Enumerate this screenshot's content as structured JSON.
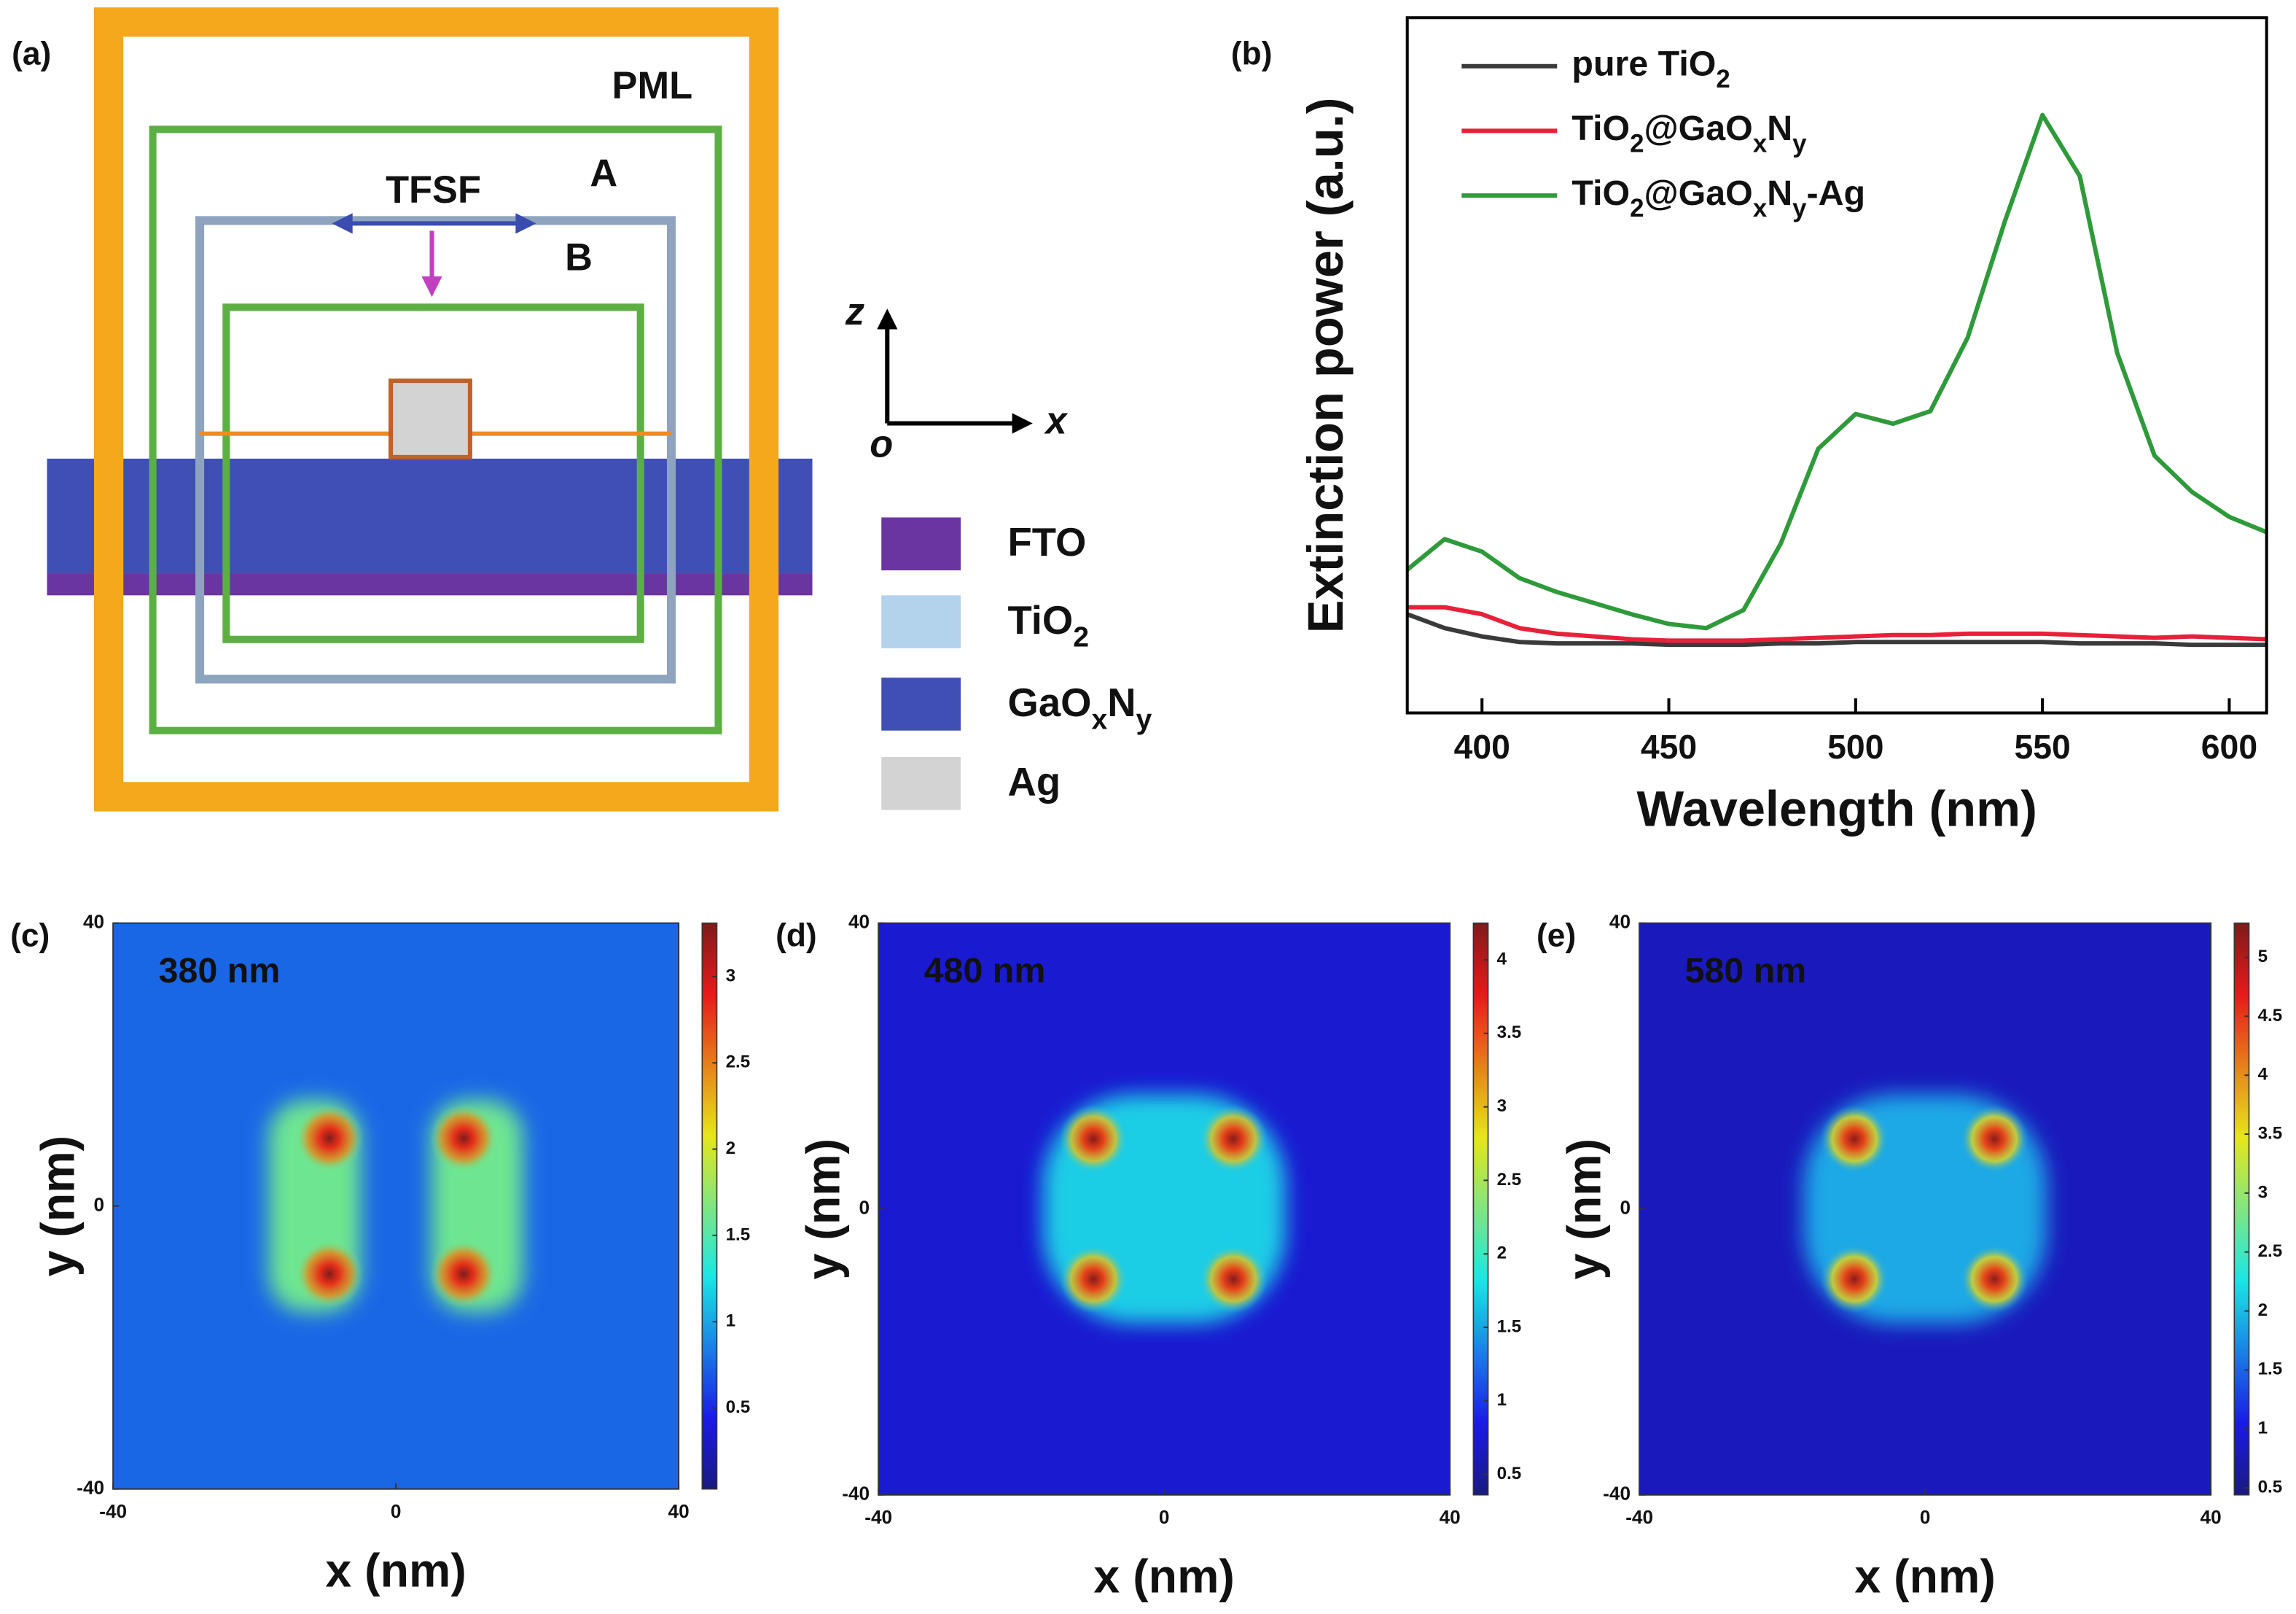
{
  "diagram": {
    "panel_label": "(a)",
    "labels": {
      "pml": "PML",
      "a": "A",
      "tfsf": "TFSF",
      "b": "B"
    },
    "axes": {
      "z": "z",
      "o": "o",
      "x": "x"
    },
    "legend": [
      "FTO",
      "TiO2",
      "GaOxNy",
      "Ag"
    ]
  },
  "chart_data": [
    {
      "type": "line",
      "panel_label": "(b)",
      "xlabel": "Wavelength (nm)",
      "ylabel": "Extinction power (a.u.)",
      "x": [
        380,
        390,
        400,
        410,
        420,
        430,
        440,
        450,
        460,
        470,
        480,
        490,
        500,
        510,
        520,
        530,
        540,
        550,
        560,
        570,
        580,
        590,
        600,
        610
      ],
      "xlim": [
        380,
        610
      ],
      "xticks": [
        400,
        450,
        500,
        550,
        600
      ],
      "ylim": [
        0,
        5
      ],
      "legend": "upper left",
      "series": [
        {
          "name": "pure TiO2",
          "color": "#3a3a3a",
          "values": [
            0.71,
            0.61,
            0.55,
            0.51,
            0.5,
            0.5,
            0.5,
            0.49,
            0.49,
            0.49,
            0.5,
            0.5,
            0.51,
            0.51,
            0.51,
            0.51,
            0.51,
            0.51,
            0.5,
            0.5,
            0.5,
            0.49,
            0.49,
            0.49
          ]
        },
        {
          "name": "TiO2@GaOxNy",
          "color": "#e8203a",
          "values": [
            0.76,
            0.76,
            0.71,
            0.61,
            0.57,
            0.55,
            0.53,
            0.52,
            0.52,
            0.52,
            0.53,
            0.54,
            0.55,
            0.56,
            0.56,
            0.57,
            0.57,
            0.57,
            0.56,
            0.55,
            0.54,
            0.55,
            0.54,
            0.53
          ]
        },
        {
          "name": "TiO2@GaOxNy-Ag",
          "color": "#2e9a3a",
          "values": [
            1.03,
            1.25,
            1.16,
            0.97,
            0.87,
            0.79,
            0.71,
            0.64,
            0.61,
            0.74,
            1.22,
            1.9,
            2.15,
            2.08,
            2.17,
            2.7,
            3.54,
            4.3,
            3.86,
            2.59,
            1.85,
            1.59,
            1.41,
            1.3
          ]
        }
      ]
    },
    {
      "type": "heatmap",
      "panel_label": "(c)",
      "annotation": "380 nm",
      "xlabel": "x (nm)",
      "ylabel": "y (nm)",
      "xlim": [
        -40,
        40
      ],
      "xticks": [
        -40,
        0,
        40
      ],
      "ylim": [
        -40,
        40
      ],
      "yticks": [
        -40,
        0,
        40
      ],
      "colormap": "jet",
      "clim": [
        0.03,
        3.31
      ],
      "cticks": [
        0.5,
        1,
        1.5,
        2,
        2.5,
        3
      ],
      "background": 0.75,
      "regions": [
        {
          "xlim": [
            -18,
            -5
          ],
          "ylim": [
            -15,
            15
          ],
          "value": 1.6
        },
        {
          "xlim": [
            5,
            18
          ],
          "ylim": [
            -15,
            15
          ],
          "value": 1.6
        }
      ],
      "peaks": {
        "x": [
          -9.4,
          9.6,
          -9.4,
          9.6
        ],
        "y": [
          9.6,
          9.6,
          -9.6,
          -9.6
        ],
        "values": [
          3.3,
          3.3,
          3.3,
          3.3
        ]
      }
    },
    {
      "type": "heatmap",
      "panel_label": "(d)",
      "annotation": "480 nm",
      "xlabel": "x (nm)",
      "ylabel": "y (nm)",
      "xlim": [
        -40,
        40
      ],
      "xticks": [
        -40,
        0,
        40
      ],
      "ylim": [
        -40,
        40
      ],
      "yticks": [
        -40,
        0,
        40
      ],
      "colormap": "jet",
      "clim": [
        0.36,
        4.25
      ],
      "cticks": [
        0.5,
        1,
        1.5,
        2,
        2.5,
        3,
        3.5,
        4
      ],
      "background": 0.75,
      "regions": [
        {
          "xlim": [
            -17,
            17
          ],
          "ylim": [
            -16,
            16
          ],
          "value": 1.7
        }
      ],
      "peaks": {
        "x": [
          -9.9,
          9.7,
          -9.9,
          9.7
        ],
        "y": [
          9.8,
          9.8,
          -9.8,
          -9.8
        ],
        "values": [
          4.2,
          4.2,
          4.2,
          4.2
        ]
      }
    },
    {
      "type": "heatmap",
      "panel_label": "(e)",
      "annotation": "580 nm",
      "xlabel": "x (nm)",
      "ylabel": "y (nm)",
      "xlim": [
        -40,
        40
      ],
      "xticks": [
        -40,
        0,
        40
      ],
      "ylim": [
        -40,
        40
      ],
      "yticks": [
        -40,
        0,
        40
      ],
      "colormap": "jet",
      "clim": [
        0.44,
        5.29
      ],
      "cticks": [
        0.5,
        1,
        1.5,
        2,
        2.5,
        3,
        3.5,
        4,
        4.5,
        5
      ],
      "background": 0.8,
      "regions": [
        {
          "xlim": [
            -17,
            17
          ],
          "ylim": [
            -16,
            16
          ],
          "value": 1.9
        }
      ],
      "peaks": {
        "x": [
          -9.9,
          9.7,
          -9.9,
          9.7
        ],
        "y": [
          9.8,
          9.8,
          -9.8,
          -9.8
        ],
        "values": [
          5.2,
          5.2,
          5.2,
          5.2
        ]
      }
    }
  ]
}
